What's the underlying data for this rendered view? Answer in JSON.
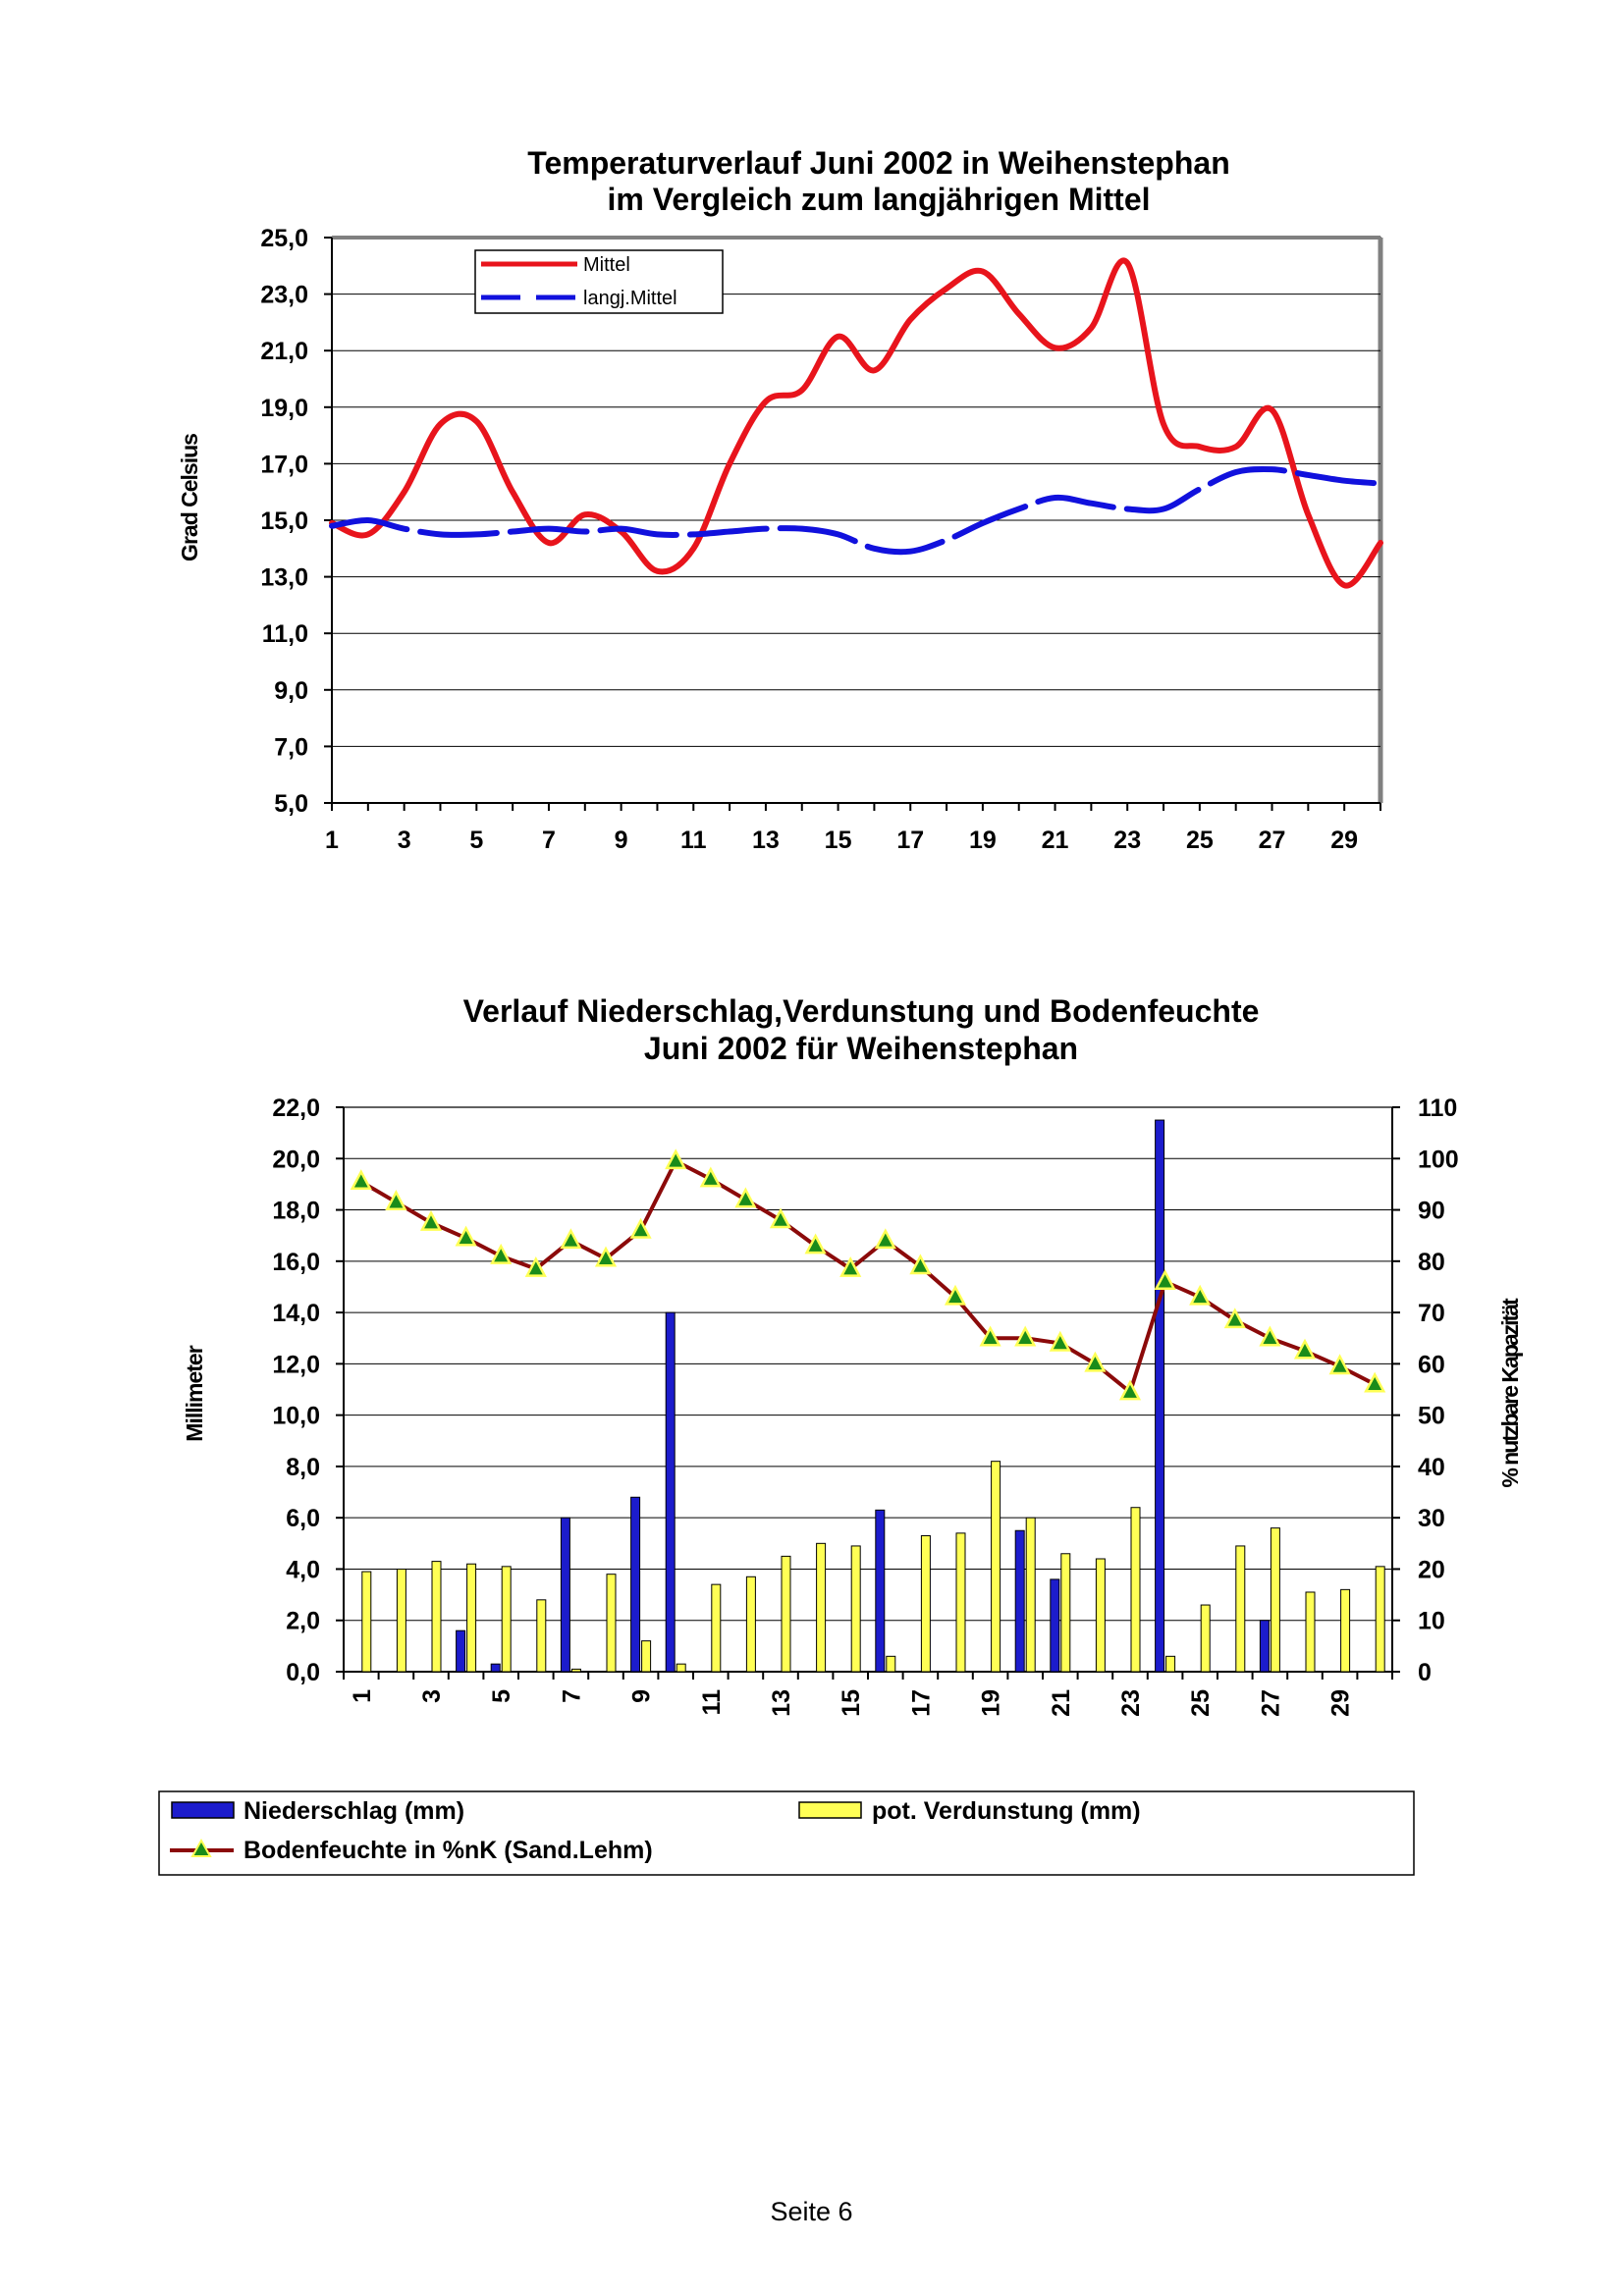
{
  "page": {
    "footer": "Seite 6"
  },
  "chart_data": [
    {
      "type": "line",
      "title": [
        "Temperaturverlauf Juni 2002 in Weihenstephan",
        "im Vergleich zum langjährigen Mittel"
      ],
      "ylabel": "Grad Celsius",
      "xlabel": "",
      "ylim": [
        5,
        25
      ],
      "yticks": [
        "25,0",
        "23,0",
        "21,0",
        "19,0",
        "17,0",
        "15,0",
        "13,0",
        "11,0",
        "9,0",
        "7,0",
        "5,0"
      ],
      "xticks": [
        "1",
        "3",
        "5",
        "7",
        "9",
        "11",
        "13",
        "15",
        "17",
        "19",
        "21",
        "23",
        "25",
        "27",
        "29"
      ],
      "x": [
        1,
        2,
        3,
        4,
        5,
        6,
        7,
        8,
        9,
        10,
        11,
        12,
        13,
        14,
        15,
        16,
        17,
        18,
        19,
        20,
        21,
        22,
        23,
        24,
        25,
        26,
        27,
        28,
        29,
        30
      ],
      "grid": true,
      "legend_position": "top-left",
      "series": [
        {
          "name": "Mittel",
          "color": "#e8141c",
          "style": "solid",
          "values": [
            14.9,
            14.5,
            16.0,
            18.4,
            18.5,
            16.0,
            14.2,
            15.2,
            14.6,
            13.2,
            14.0,
            17.0,
            19.2,
            19.6,
            21.5,
            20.3,
            22.1,
            23.2,
            23.8,
            22.3,
            21.1,
            21.8,
            24.1,
            18.4,
            17.6,
            17.6,
            18.9,
            15.2,
            12.7,
            14.2
          ]
        },
        {
          "name": "langj.Mittel",
          "color": "#1111dd",
          "style": "dashed",
          "values": [
            14.8,
            15.0,
            14.7,
            14.5,
            14.5,
            14.6,
            14.7,
            14.6,
            14.7,
            14.5,
            14.5,
            14.6,
            14.7,
            14.7,
            14.5,
            14.0,
            13.9,
            14.3,
            14.9,
            15.4,
            15.8,
            15.6,
            15.4,
            15.4,
            16.1,
            16.7,
            16.8,
            16.6,
            16.4,
            16.3
          ]
        }
      ]
    },
    {
      "type": "bar",
      "title": [
        "Verlauf Niederschlag,Verdunstung und Bodenfeuchte",
        "Juni 2002 für Weihenstephan"
      ],
      "ylabel": "Millimeter",
      "y2label": "% nutzbare Kapazität",
      "ylim": [
        0,
        22
      ],
      "y2lim": [
        0,
        110
      ],
      "yticks": [
        "22,0",
        "20,0",
        "18,0",
        "16,0",
        "14,0",
        "12,0",
        "10,0",
        "8,0",
        "6,0",
        "4,0",
        "2,0",
        "0,0"
      ],
      "y2ticks": [
        "110",
        "100",
        "90",
        "80",
        "70",
        "60",
        "50",
        "40",
        "30",
        "20",
        "10",
        "0"
      ],
      "xticks": [
        "1",
        "3",
        "5",
        "7",
        "9",
        "11",
        "13",
        "15",
        "17",
        "19",
        "21",
        "23",
        "25",
        "27",
        "29"
      ],
      "categories": [
        1,
        2,
        3,
        4,
        5,
        6,
        7,
        8,
        9,
        10,
        11,
        12,
        13,
        14,
        15,
        16,
        17,
        18,
        19,
        20,
        21,
        22,
        23,
        24,
        25,
        26,
        27,
        28,
        29,
        30
      ],
      "grid": true,
      "legend_position": "bottom",
      "series": [
        {
          "name": "Niederschlag (mm)",
          "color": "#1c1ccc",
          "axis": "left",
          "values": [
            0,
            0,
            0,
            1.6,
            0.3,
            0,
            6.0,
            0,
            6.8,
            14.0,
            0,
            0,
            0,
            0,
            0,
            6.3,
            0,
            0,
            0,
            5.5,
            3.6,
            0,
            0,
            21.5,
            0,
            0,
            2.0,
            0,
            0,
            0
          ]
        },
        {
          "name": "pot. Verdunstung (mm)",
          "color": "#ffff55",
          "axis": "left",
          "values": [
            3.9,
            4.0,
            4.3,
            4.2,
            4.1,
            2.8,
            0.1,
            3.8,
            1.2,
            0.3,
            3.4,
            3.7,
            4.5,
            5.0,
            4.9,
            0.6,
            5.3,
            5.4,
            8.2,
            6.0,
            4.6,
            4.4,
            6.4,
            0.6,
            2.6,
            4.9,
            5.6,
            3.1,
            3.2,
            4.1
          ]
        },
        {
          "name": "Bodenfeuchte in %nK (Sand.Lehm)",
          "color": "#8b0a0a",
          "marker_color": "#1a8c1a",
          "marker_edge": "#ffff55",
          "axis": "right",
          "values": [
            95.5,
            91.5,
            87.5,
            84.5,
            81,
            78.5,
            84,
            80.5,
            86,
            99.5,
            96,
            92,
            88,
            83,
            78.5,
            84,
            79,
            73,
            65,
            65,
            64,
            60,
            54.5,
            76,
            73,
            68.5,
            65,
            62.5,
            59.5,
            56
          ]
        }
      ]
    }
  ]
}
